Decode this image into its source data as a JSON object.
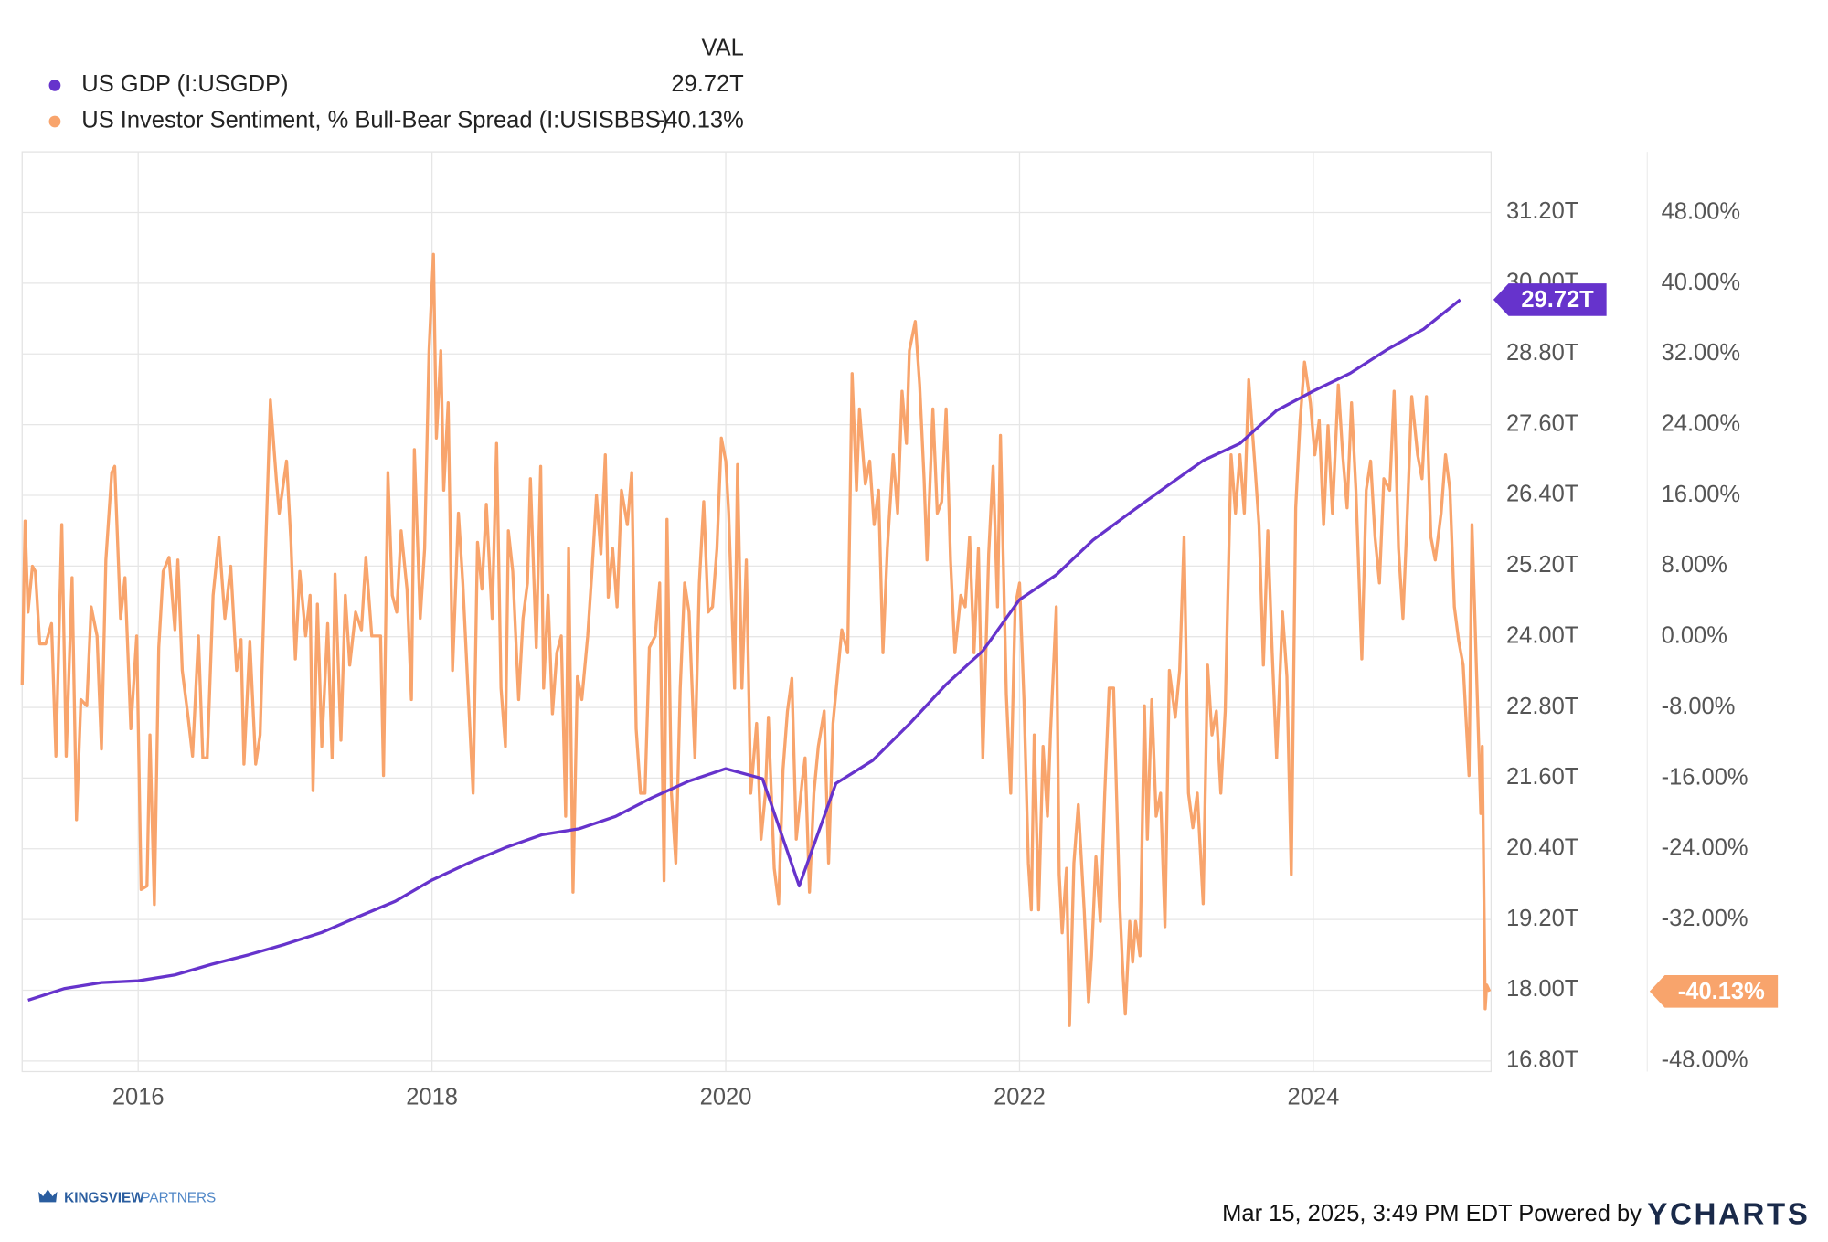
{
  "chart_data": {
    "type": "line",
    "legend_header": "VAL",
    "legend": "top-left",
    "grid": true,
    "xlim": [
      2015.21,
      2025.21
    ],
    "xticks": [
      2016,
      2018,
      2020,
      2022,
      2024
    ],
    "ylim": [
      16.62,
      32.23
    ],
    "yticks": [
      {
        "value": 16.8,
        "label": "16.80T"
      },
      {
        "value": 18.0,
        "label": "18.00T"
      },
      {
        "value": 19.2,
        "label": "19.20T"
      },
      {
        "value": 20.4,
        "label": "20.40T"
      },
      {
        "value": 21.6,
        "label": "21.60T"
      },
      {
        "value": 22.8,
        "label": "22.80T"
      },
      {
        "value": 24.0,
        "label": "24.00T"
      },
      {
        "value": 25.2,
        "label": "25.20T"
      },
      {
        "value": 26.4,
        "label": "26.40T"
      },
      {
        "value": 27.6,
        "label": "27.60T"
      },
      {
        "value": 28.8,
        "label": "28.80T"
      },
      {
        "value": 30.0,
        "label": "30.00T"
      },
      {
        "value": 31.2,
        "label": "31.20T"
      }
    ],
    "y2lim": [
      -49.2,
      54.9
    ],
    "y2ticks": [
      {
        "value": -48,
        "label": "-48.00%"
      },
      {
        "value": -40,
        "label": "-40.00%"
      },
      {
        "value": -32,
        "label": "-32.00%"
      },
      {
        "value": -24,
        "label": "-24.00%"
      },
      {
        "value": -16,
        "label": "-16.00%"
      },
      {
        "value": -8,
        "label": "-8.00%"
      },
      {
        "value": 0,
        "label": "0.00%"
      },
      {
        "value": 8,
        "label": "8.00%"
      },
      {
        "value": 16,
        "label": "16.00%"
      },
      {
        "value": 24,
        "label": "24.00%"
      },
      {
        "value": 32,
        "label": "32.00%"
      },
      {
        "value": 40,
        "label": "40.00%"
      },
      {
        "value": 48,
        "label": "48.00%"
      }
    ],
    "series": [
      {
        "name": "US GDP (I:USGDP)",
        "color": "#6633cc",
        "axis": "y",
        "legend_value": "29.72T",
        "x": [
          2015.25,
          2015.5,
          2015.75,
          2016,
          2016.25,
          2016.5,
          2016.75,
          2017,
          2017.25,
          2017.5,
          2017.75,
          2018,
          2018.25,
          2018.5,
          2018.75,
          2019,
          2019.25,
          2019.5,
          2019.75,
          2020,
          2020.25,
          2020.5,
          2020.75,
          2021,
          2021.25,
          2021.5,
          2021.75,
          2022,
          2022.25,
          2022.5,
          2022.75,
          2023,
          2023.25,
          2023.5,
          2023.75,
          2024,
          2024.25,
          2024.5,
          2024.75,
          2025
        ],
        "values": [
          17.83,
          18.03,
          18.13,
          18.16,
          18.26,
          18.44,
          18.6,
          18.78,
          18.98,
          19.25,
          19.51,
          19.87,
          20.16,
          20.42,
          20.64,
          20.74,
          20.95,
          21.27,
          21.55,
          21.76,
          21.59,
          19.77,
          21.51,
          21.9,
          22.52,
          23.19,
          23.76,
          24.63,
          25.05,
          25.64,
          26.1,
          26.55,
          26.99,
          27.28,
          27.84,
          28.17,
          28.47,
          28.87,
          29.22,
          29.72
        ]
      },
      {
        "name": "US Investor Sentiment, % Bull-Bear Spread (I:USISBBS)",
        "color": "#f8a46c",
        "axis": "y2",
        "legend_value": "-40.13%",
        "x": [
          2015.21,
          2015.23,
          2015.25,
          2015.28,
          2015.3,
          2015.33,
          2015.37,
          2015.41,
          2015.44,
          2015.48,
          2015.51,
          2015.55,
          2015.58,
          2015.61,
          2015.65,
          2015.68,
          2015.72,
          2015.75,
          2015.78,
          2015.82,
          2015.84,
          2015.88,
          2015.91,
          2015.95,
          2015.99,
          2016.02,
          2016.06,
          2016.08,
          2016.11,
          2016.14,
          2016.17,
          2016.21,
          2016.25,
          2016.27,
          2016.3,
          2016.34,
          2016.37,
          2016.41,
          2016.44,
          2016.47,
          2016.51,
          2016.55,
          2016.59,
          2016.63,
          2016.67,
          2016.7,
          2016.72,
          2016.76,
          2016.8,
          2016.83,
          2016.87,
          2016.9,
          2016.94,
          2016.96,
          2017.01,
          2017.04,
          2017.07,
          2017.1,
          2017.14,
          2017.17,
          2017.19,
          2017.22,
          2017.25,
          2017.29,
          2017.32,
          2017.34,
          2017.38,
          2017.41,
          2017.44,
          2017.48,
          2017.52,
          2017.55,
          2017.59,
          2017.65,
          2017.67,
          2017.7,
          2017.73,
          2017.76,
          2017.79,
          2017.83,
          2017.86,
          2017.88,
          2017.92,
          2017.95,
          2017.98,
          2018.01,
          2018.03,
          2018.06,
          2018.08,
          2018.11,
          2018.14,
          2018.18,
          2018.21,
          2018.24,
          2018.28,
          2018.31,
          2018.34,
          2018.37,
          2018.41,
          2018.44,
          2018.47,
          2018.5,
          2018.52,
          2018.55,
          2018.59,
          2018.62,
          2018.65,
          2018.67,
          2018.71,
          2018.74,
          2018.76,
          2018.79,
          2018.82,
          2018.85,
          2018.88,
          2018.91,
          2018.93,
          2018.96,
          2018.99,
          2019.02,
          2019.06,
          2019.09,
          2019.12,
          2019.15,
          2019.18,
          2019.2,
          2019.23,
          2019.26,
          2019.29,
          2019.33,
          2019.36,
          2019.39,
          2019.42,
          2019.45,
          2019.48,
          2019.52,
          2019.55,
          2019.58,
          2019.6,
          2019.63,
          2019.66,
          2019.69,
          2019.72,
          2019.75,
          2019.79,
          2019.82,
          2019.85,
          2019.88,
          2019.91,
          2019.94,
          2019.97,
          2020.0,
          2020.02,
          2020.06,
          2020.08,
          2020.11,
          2020.14,
          2020.17,
          2020.21,
          2020.24,
          2020.27,
          2020.29,
          2020.33,
          2020.36,
          2020.39,
          2020.42,
          2020.45,
          2020.48,
          2020.52,
          2020.54,
          2020.57,
          2020.6,
          2020.63,
          2020.67,
          2020.7,
          2020.73,
          2020.76,
          2020.79,
          2020.83,
          2020.86,
          2020.89,
          2020.91,
          2020.95,
          2020.98,
          2021.01,
          2021.04,
          2021.07,
          2021.1,
          2021.14,
          2021.17,
          2021.2,
          2021.23,
          2021.25,
          2021.29,
          2021.32,
          2021.35,
          2021.37,
          2021.41,
          2021.44,
          2021.47,
          2021.5,
          2021.53,
          2021.56,
          2021.6,
          2021.63,
          2021.66,
          2021.69,
          2021.72,
          2021.75,
          2021.79,
          2021.82,
          2021.85,
          2021.87,
          2021.91,
          2021.94,
          2021.97,
          2022.0,
          2022.03,
          2022.06,
          2022.08,
          2022.1,
          2022.13,
          2022.16,
          2022.19,
          2022.21,
          2022.25,
          2022.27,
          2022.29,
          2022.32,
          2022.34,
          2022.37,
          2022.4,
          2022.44,
          2022.47,
          2022.49,
          2022.52,
          2022.55,
          2022.58,
          2022.61,
          2022.64,
          2022.68,
          2022.7,
          2022.72,
          2022.75,
          2022.77,
          2022.79,
          2022.82,
          2022.85,
          2022.87,
          2022.9,
          2022.93,
          2022.96,
          2022.99,
          2023.02,
          2023.06,
          2023.09,
          2023.12,
          2023.15,
          2023.18,
          2023.21,
          2023.25,
          2023.28,
          2023.31,
          2023.34,
          2023.37,
          2023.4,
          2023.44,
          2023.47,
          2023.5,
          2023.53,
          2023.56,
          2023.6,
          2023.63,
          2023.66,
          2023.69,
          2023.72,
          2023.75,
          2023.79,
          2023.82,
          2023.85,
          2023.88,
          2023.91,
          2023.94,
          2023.98,
          2024.01,
          2024.04,
          2024.07,
          2024.1,
          2024.13,
          2024.17,
          2024.2,
          2024.23,
          2024.26,
          2024.29,
          2024.33,
          2024.36,
          2024.39,
          2024.42,
          2024.45,
          2024.48,
          2024.52,
          2024.55,
          2024.58,
          2024.61,
          2024.64,
          2024.67,
          2024.71,
          2024.74,
          2024.77,
          2024.8,
          2024.83,
          2024.87,
          2024.9,
          2024.93,
          2024.96,
          2024.99,
          2025.02,
          2025.06,
          2025.08,
          2025.1,
          2025.14,
          2025.15,
          2025.17,
          2025.18,
          2025.2
        ],
        "values": [
          -5.5,
          13.1,
          2.8,
          8.0,
          7.4,
          -0.8,
          -0.8,
          1.5,
          -13.5,
          12.7,
          -13.5,
          6.7,
          -20.7,
          -7.1,
          -7.8,
          3.4,
          0.1,
          -12.7,
          8.7,
          18.6,
          19.3,
          2.1,
          6.7,
          -10.4,
          0.1,
          -28.6,
          -28.2,
          -11.1,
          -30.3,
          -1.2,
          7.4,
          9.0,
          0.8,
          8.7,
          -3.8,
          -9.1,
          -13.5,
          0.1,
          -13.7,
          -13.7,
          4.7,
          11.3,
          2.1,
          8.0,
          -3.8,
          -0.3,
          -14.4,
          -0.5,
          -14.4,
          -11.1,
          11.3,
          26.8,
          17.9,
          14.0,
          19.9,
          10.7,
          -2.5,
          7.4,
          0.1,
          4.7,
          -17.4,
          3.7,
          -12.4,
          1.5,
          -13.7,
          7.1,
          -11.7,
          4.7,
          -3.2,
          2.8,
          0.8,
          9.0,
          0.1,
          0.1,
          -15.7,
          18.6,
          4.7,
          2.8,
          12.0,
          5.4,
          -7.1,
          21.2,
          2.1,
          10.0,
          32.4,
          43.3,
          22.5,
          32.4,
          16.6,
          26.5,
          -3.8,
          14.0,
          6.1,
          -4.2,
          -17.7,
          10.7,
          5.4,
          15.0,
          2.1,
          21.9,
          -5.8,
          -12.4,
          12.0,
          7.4,
          -7.1,
          2.1,
          6.1,
          17.9,
          -1.2,
          19.3,
          -5.8,
          4.7,
          -8.7,
          -1.8,
          0.1,
          -20.3,
          10.0,
          -28.9,
          -4.5,
          -7.1,
          0.1,
          7.6,
          16.0,
          9.4,
          20.6,
          4.5,
          10.0,
          3.4,
          16.6,
          12.7,
          18.6,
          -10.4,
          -17.7,
          -17.7,
          -1.2,
          0.1,
          6.1,
          -27.6,
          13.3,
          -17.7,
          -25.6,
          -5.8,
          6.1,
          2.8,
          -13.7,
          6.1,
          15.3,
          2.8,
          3.4,
          10.0,
          22.5,
          19.9,
          14.0,
          -5.8,
          19.5,
          -5.8,
          8.7,
          -17.7,
          -9.8,
          -22.9,
          -17.7,
          -9.1,
          -26.2,
          -30.2,
          -15.0,
          -8.4,
          -4.7,
          -22.9,
          -16.4,
          -13.7,
          -28.9,
          -17.7,
          -12.4,
          -8.4,
          -25.6,
          -9.8,
          -4.5,
          0.8,
          -1.8,
          29.8,
          16.6,
          25.8,
          17.3,
          19.9,
          12.7,
          16.6,
          -1.8,
          10.0,
          20.6,
          14.0,
          27.8,
          21.9,
          32.4,
          35.7,
          28.5,
          17.9,
          8.7,
          25.8,
          14.0,
          15.3,
          25.8,
          8.7,
          -1.8,
          4.7,
          3.4,
          11.3,
          -1.8,
          10.0,
          -13.7,
          9.4,
          19.3,
          3.4,
          22.8,
          -6.5,
          -17.7,
          3.4,
          6.1,
          -7.1,
          -25.6,
          -30.9,
          -11.1,
          -30.9,
          -12.4,
          -20.3,
          -11.1,
          3.4,
          -26.9,
          -33.5,
          -26.2,
          -44.0,
          -25.6,
          -19.0,
          -30.9,
          -41.4,
          -36.1,
          -24.9,
          -32.2,
          -17.7,
          -5.8,
          -5.8,
          -29.5,
          -36.8,
          -42.7,
          -32.2,
          -36.8,
          -32.2,
          -36.1,
          -7.8,
          -22.9,
          -7.1,
          -20.3,
          -17.7,
          -32.8,
          -3.8,
          -9.1,
          -3.8,
          11.3,
          -17.7,
          -21.6,
          -17.7,
          -30.2,
          -3.2,
          -11.1,
          -8.4,
          -17.7,
          -8.4,
          20.6,
          14.0,
          20.6,
          14.0,
          29.1,
          19.9,
          12.7,
          -3.2,
          12.0,
          -1.8,
          -13.7,
          2.8,
          -4.5,
          -26.9,
          14.6,
          24.5,
          31.1,
          26.5,
          20.6,
          24.5,
          12.7,
          23.9,
          14.0,
          28.5,
          20.6,
          14.6,
          26.5,
          16.6,
          -2.5,
          16.6,
          19.9,
          11.3,
          6.1,
          17.9,
          16.6,
          27.8,
          10.0,
          2.1,
          14.0,
          27.2,
          20.6,
          17.9,
          27.2,
          11.3,
          8.7,
          14.0,
          20.6,
          16.6,
          3.4,
          -0.5,
          -3.2,
          -15.7,
          12.7,
          2.1,
          -20.0,
          -12.4,
          -42.1,
          -39.4,
          -40.13
        ]
      }
    ],
    "footer": {
      "timestamp": "Mar 15, 2025, 3:49 PM EDT Powered by",
      "brand": "YCHARTS"
    },
    "logo": {
      "bold": "KINGSVIEW",
      "light": "PARTNERS"
    }
  }
}
